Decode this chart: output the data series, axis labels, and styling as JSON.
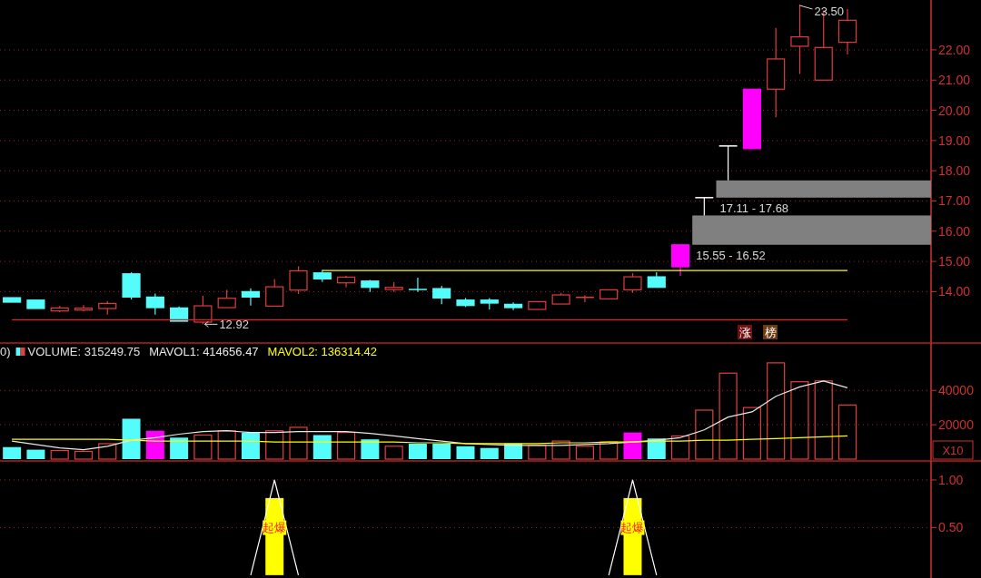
{
  "chart_data": [
    {
      "type": "candlestick",
      "categories": [
        null,
        null,
        null,
        null,
        null,
        null,
        null,
        null,
        null,
        null,
        null,
        null,
        null,
        null,
        null,
        null,
        null,
        null,
        null,
        null,
        null,
        null,
        null,
        null,
        null,
        null,
        null,
        null,
        null,
        null,
        null,
        null,
        null,
        null,
        null,
        null,
        null,
        null,
        null
      ],
      "ohlc": [
        [
          13.8,
          13.8,
          13.65,
          13.65
        ],
        [
          13.72,
          13.72,
          13.44,
          13.44
        ],
        [
          13.36,
          13.52,
          13.31,
          13.46
        ],
        [
          13.39,
          13.55,
          13.35,
          13.45
        ],
        [
          13.44,
          13.69,
          13.24,
          13.61
        ],
        [
          14.59,
          14.64,
          13.74,
          13.82
        ],
        [
          13.82,
          13.94,
          13.24,
          13.47
        ],
        [
          13.46,
          13.51,
          13.02,
          13.02
        ],
        [
          12.99,
          13.86,
          12.92,
          13.53
        ],
        [
          13.47,
          14.06,
          13.47,
          13.78
        ],
        [
          14.0,
          14.11,
          13.54,
          13.82
        ],
        [
          13.52,
          14.42,
          13.52,
          14.16
        ],
        [
          14.05,
          14.84,
          13.92,
          14.69
        ],
        [
          14.62,
          14.72,
          14.32,
          14.42
        ],
        [
          14.29,
          14.52,
          14.14,
          14.48
        ],
        [
          14.35,
          14.39,
          13.99,
          14.14
        ],
        [
          14.07,
          14.31,
          13.99,
          14.14
        ],
        [
          14.07,
          14.46,
          13.99,
          14.05
        ],
        [
          14.1,
          14.19,
          13.58,
          13.79
        ],
        [
          13.72,
          13.79,
          13.49,
          13.54
        ],
        [
          13.72,
          13.79,
          13.41,
          13.62
        ],
        [
          13.58,
          13.64,
          13.39,
          13.47
        ],
        [
          13.41,
          13.67,
          13.41,
          13.67
        ],
        [
          13.59,
          13.96,
          13.59,
          13.89
        ],
        [
          13.77,
          13.88,
          13.65,
          13.81
        ],
        [
          13.76,
          14.06,
          13.76,
          14.06
        ],
        [
          14.06,
          14.61,
          13.96,
          14.49
        ],
        [
          14.49,
          14.64,
          14.14,
          14.14
        ],
        [
          14.82,
          15.55,
          14.52,
          15.55
        ],
        [
          17.11,
          17.11,
          16.52,
          17.11
        ],
        [
          18.82,
          18.82,
          17.68,
          18.82
        ],
        [
          18.73,
          20.7,
          18.73,
          20.7
        ],
        [
          20.7,
          22.73,
          19.77,
          21.7
        ],
        [
          22.12,
          23.5,
          21.2,
          22.43
        ],
        [
          21.0,
          23.3,
          21.0,
          22.08
        ],
        [
          22.25,
          23.35,
          21.85,
          22.98
        ],
        null,
        null,
        null
      ],
      "colors": [
        "#54fcfc",
        "#54fcfc",
        "#e03c3c",
        "#e03c3c",
        "#e03c3c",
        "#54fcfc",
        "#54fcfc",
        "#54fcfc",
        "#e03c3c",
        "#e03c3c",
        "#54fcfc",
        "#e03c3c",
        "#e03c3c",
        "#54fcfc",
        "#e03c3c",
        "#54fcfc",
        "#e03c3c",
        "#54fcfc",
        "#54fcfc",
        "#54fcfc",
        "#54fcfc",
        "#54fcfc",
        "#e03c3c",
        "#e03c3c",
        "#e03c3c",
        "#e03c3c",
        "#e03c3c",
        "#54fcfc",
        "#ff00ff",
        "#ffffff",
        "#ffffff",
        "#ff00ff",
        "#e03c3c",
        "#e03c3c",
        "#e03c3c",
        "#e03c3c",
        null,
        null,
        null
      ],
      "series": [
        {
          "type": "line",
          "color": "#ffff00",
          "values": [
            null,
            null,
            null,
            null,
            null,
            null,
            null,
            null,
            null,
            null,
            null,
            null,
            null,
            14.7,
            14.7,
            14.7,
            14.7,
            14.7,
            14.7,
            14.7,
            14.7,
            14.7,
            14.7,
            14.7,
            14.7,
            14.7,
            14.7,
            14.7,
            14.7,
            14.7,
            14.7,
            14.7,
            14.7,
            14.7,
            14.7,
            14.7,
            null,
            null,
            null
          ]
        },
        {
          "type": "line",
          "color": "#e02020",
          "values": [
            13.07,
            13.07,
            13.07,
            13.07,
            13.07,
            13.07,
            13.07,
            13.07,
            13.07,
            13.07,
            13.07,
            13.07,
            13.07,
            13.07,
            13.07,
            13.07,
            13.07,
            13.07,
            13.07,
            13.07,
            13.07,
            13.07,
            13.07,
            13.07,
            13.07,
            13.07,
            13.07,
            13.07,
            13.07,
            13.07,
            13.07,
            13.07,
            13.07,
            13.07,
            13.07,
            13.07,
            null,
            null,
            null
          ]
        }
      ],
      "bands": [
        {
          "axis": "y",
          "from": 15.55,
          "to": 16.52,
          "label": "15.55 - 16.52",
          "color": "#808080"
        },
        {
          "axis": "y",
          "from": 17.11,
          "to": 17.68,
          "label": "17.11 - 17.68",
          "color": "#808080"
        }
      ],
      "annotations": [
        "23.50",
        "12.92",
        "涨",
        "榜"
      ],
      "ylim": [
        12.36,
        23.65
      ],
      "yticks": [
        {
          "value": 14,
          "label": "14.00"
        },
        {
          "value": 15,
          "label": "15.00"
        },
        {
          "value": 16,
          "label": "16.00"
        },
        {
          "value": 17,
          "label": "17.00"
        },
        {
          "value": 18,
          "label": "18.00"
        },
        {
          "value": 19,
          "label": "19.00"
        },
        {
          "value": 20,
          "label": "20.00"
        },
        {
          "value": 21,
          "label": "21.00"
        },
        {
          "value": 22,
          "label": "22.00"
        }
      ],
      "grid": true
    },
    {
      "type": "bar",
      "title": "0)",
      "categories": [
        null,
        null,
        null,
        null,
        null,
        null,
        null,
        null,
        null,
        null,
        null,
        null,
        null,
        null,
        null,
        null,
        null,
        null,
        null,
        null,
        null,
        null,
        null,
        null,
        null,
        null,
        null,
        null,
        null,
        null,
        null,
        null,
        null,
        null,
        null,
        null,
        null,
        null,
        null
      ],
      "series": [
        {
          "name": "VOLUME: 315249.75",
          "type": "bar",
          "colors": [
            "#54fcfc",
            "#54fcfc",
            "#e04040",
            "#e04040",
            "#e04040",
            "#54fcfc",
            "#ff00ff",
            "#54fcfc",
            "#e04040",
            "#e04040",
            "#54fcfc",
            "#e04040",
            "#e04040",
            "#54fcfc",
            "#e04040",
            "#54fcfc",
            "#e04040",
            "#54fcfc",
            "#54fcfc",
            "#54fcfc",
            "#54fcfc",
            "#54fcfc",
            "#e04040",
            "#e04040",
            "#e04040",
            "#e04040",
            "#ff00ff",
            "#54fcfc",
            "#e04040",
            "#e04040",
            "#e04040",
            "#e04040",
            "#e04040",
            "#e04040",
            "#e04040",
            "#e04040",
            null,
            null,
            null
          ],
          "values": [
            7000,
            5500,
            5000,
            4500,
            9000,
            23500,
            16500,
            12500,
            14000,
            16500,
            15500,
            16500,
            18500,
            14000,
            15500,
            11500,
            7500,
            9000,
            9000,
            7500,
            6500,
            9000,
            8000,
            10500,
            7500,
            10000,
            15500,
            12000,
            13500,
            28500,
            50000,
            30000,
            56000,
            45000,
            45500,
            31500,
            null,
            null,
            null
          ]
        },
        {
          "name": "MAVOL1: 414656.47",
          "type": "line",
          "color": "#e8e8e8",
          "values": [
            10500,
            8500,
            6500,
            5500,
            7500,
            11000,
            12500,
            14500,
            16000,
            16500,
            15500,
            15500,
            16000,
            16000,
            16000,
            15000,
            13500,
            12000,
            10500,
            9000,
            8500,
            8000,
            8000,
            8000,
            8500,
            9000,
            10000,
            11000,
            12500,
            17000,
            24500,
            27500,
            36500,
            42000,
            45500,
            41500,
            null,
            null,
            null
          ]
        },
        {
          "name": "MAVOL2: 136314.42",
          "type": "line",
          "color": "#ffff00",
          "values": [
            11500,
            11500,
            11500,
            11500,
            11500,
            11000,
            10500,
            10500,
            10500,
            10500,
            10500,
            10000,
            10000,
            10000,
            10000,
            10000,
            10000,
            9500,
            9500,
            9000,
            9000,
            9000,
            9000,
            9500,
            9500,
            10000,
            10000,
            10500,
            10500,
            11000,
            11000,
            11500,
            12000,
            12500,
            13000,
            13500,
            null,
            null,
            null
          ]
        }
      ],
      "ylim": [
        0,
        67550
      ],
      "yticks": [
        20000,
        40000
      ],
      "grid": true,
      "legend": "top left",
      "annotations": [
        "X10"
      ]
    },
    {
      "type": "bar",
      "categories": [
        null,
        null,
        null,
        null,
        null,
        null,
        null,
        null,
        null,
        null,
        null,
        null,
        null,
        null,
        null,
        null,
        null,
        null,
        null,
        null,
        null,
        null,
        null,
        null,
        null,
        null,
        null,
        null,
        null,
        null,
        null,
        null,
        null,
        null,
        null,
        null,
        null,
        null,
        null
      ],
      "series": [
        {
          "type": "bar",
          "color": "#ffff00",
          "values": [
            null,
            null,
            null,
            null,
            null,
            null,
            null,
            null,
            null,
            null,
            null,
            0.81,
            null,
            null,
            null,
            null,
            null,
            null,
            null,
            null,
            null,
            null,
            null,
            null,
            null,
            null,
            0.81,
            null,
            null,
            null,
            null,
            null,
            null,
            null,
            null,
            null,
            null,
            null,
            null
          ]
        },
        {
          "type": "line",
          "color": "#ffffff",
          "values": [
            null,
            null,
            null,
            null,
            null,
            null,
            null,
            null,
            null,
            null,
            0,
            1,
            0,
            null,
            null,
            null,
            null,
            null,
            null,
            null,
            null,
            null,
            null,
            null,
            null,
            0,
            1,
            0,
            null,
            null,
            null,
            null,
            null,
            null,
            null,
            null,
            null,
            null,
            null
          ]
        }
      ],
      "ylim": [
        -0.03,
        1.2
      ],
      "yticks": [
        {
          "value": 0.5,
          "label": "0.50"
        },
        {
          "value": 1,
          "label": "1.00"
        }
      ],
      "grid": true,
      "annotations": [
        "起爆",
        "起爆"
      ]
    }
  ]
}
